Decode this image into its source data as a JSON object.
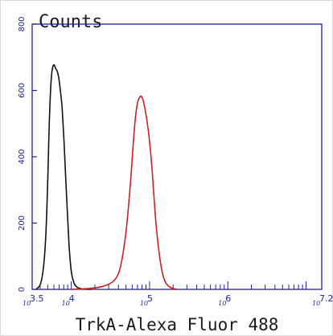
{
  "chart_data": {
    "type": "line",
    "title": "Counts",
    "xlabel": "TrkA-Alexa Fluor 488",
    "ylabel": "",
    "x_scale": "log10",
    "xlim": [
      3.5,
      7.2
    ],
    "ylim": [
      0,
      800
    ],
    "y_ticks": [
      {
        "value": 0,
        "label": "0"
      },
      {
        "value": 200,
        "label": "200"
      },
      {
        "value": 400,
        "label": "400"
      },
      {
        "value": 600,
        "label": "600"
      },
      {
        "value": 800,
        "label": "800"
      }
    ],
    "x_ticks": [
      {
        "value": 3.5,
        "base": "10",
        "exp": "3.5"
      },
      {
        "value": 4,
        "base": "10",
        "exp": "4"
      },
      {
        "value": 5,
        "base": "10",
        "exp": "5"
      },
      {
        "value": 6,
        "base": "10",
        "exp": "6"
      },
      {
        "value": 7.2,
        "base": "10",
        "exp": "7.2"
      }
    ],
    "series": [
      {
        "color": "#111111",
        "x": [
          3.55,
          3.62,
          3.67,
          3.7,
          3.72,
          3.74,
          3.76,
          3.78,
          3.8,
          3.82,
          3.84,
          3.86,
          3.88,
          3.9,
          3.92,
          3.94,
          3.96,
          3.98,
          4.0,
          4.03,
          4.06,
          4.1,
          4.15,
          4.25
        ],
        "y": [
          0,
          15,
          120,
          330,
          520,
          630,
          672,
          680,
          665,
          660,
          640,
          600,
          560,
          480,
          380,
          280,
          180,
          100,
          50,
          20,
          8,
          3,
          1,
          0
        ]
      },
      {
        "color": "#cc2222",
        "x": [
          4.0,
          4.3,
          4.5,
          4.6,
          4.65,
          4.7,
          4.75,
          4.78,
          4.81,
          4.84,
          4.87,
          4.9,
          4.93,
          4.96,
          4.99,
          5.02,
          5.05,
          5.08,
          5.12,
          5.16,
          5.2,
          5.26,
          5.35
        ],
        "y": [
          0,
          3,
          15,
          40,
          90,
          170,
          300,
          400,
          500,
          560,
          580,
          585,
          560,
          520,
          470,
          400,
          300,
          200,
          110,
          50,
          20,
          5,
          0
        ]
      }
    ],
    "grid": false
  }
}
